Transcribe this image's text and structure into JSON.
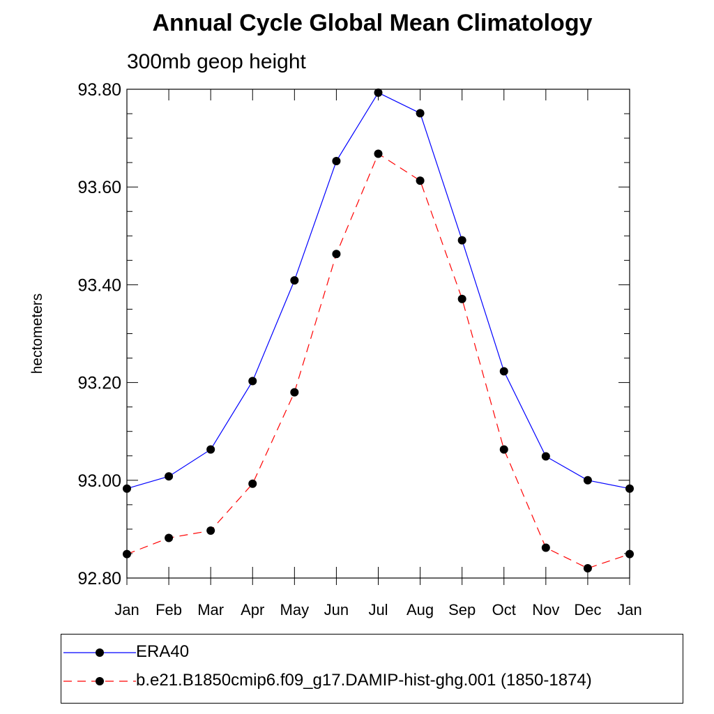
{
  "chart_data": {
    "type": "line",
    "title": "Annual Cycle Global Mean Climatology",
    "subtitle": "300mb geop height",
    "xlabel": "",
    "ylabel": "hectometers",
    "categories": [
      "Jan",
      "Feb",
      "Mar",
      "Apr",
      "May",
      "Jun",
      "Jul",
      "Aug",
      "Sep",
      "Oct",
      "Nov",
      "Dec",
      "Jan"
    ],
    "ylim": [
      92.8,
      93.8
    ],
    "y_ticks": [
      92.8,
      93.0,
      93.2,
      93.4,
      93.6,
      93.8
    ],
    "y_tick_labels": [
      "92.80",
      "93.00",
      "93.20",
      "93.40",
      "93.60",
      "93.80"
    ],
    "grid": false,
    "legend_position": "bottom",
    "series": [
      {
        "name": "ERA40",
        "color": "#0000ff",
        "line_style": "solid",
        "marker": "filled-circle",
        "values": [
          92.983,
          93.008,
          93.063,
          93.203,
          93.409,
          93.653,
          93.793,
          93.751,
          93.491,
          93.223,
          93.049,
          93.0,
          92.983
        ]
      },
      {
        "name": "b.e21.B1850cmip6.f09_g17.DAMIP-hist-ghg.001 (1850-1874)",
        "color": "#ff0000",
        "line_style": "dashed",
        "marker": "filled-circle",
        "values": [
          92.849,
          92.882,
          92.897,
          92.993,
          93.18,
          93.463,
          93.668,
          93.613,
          93.371,
          93.063,
          92.862,
          92.82,
          92.849
        ]
      }
    ]
  }
}
